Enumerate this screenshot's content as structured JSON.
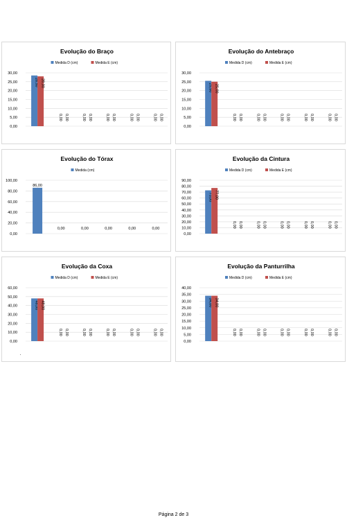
{
  "colors": {
    "series_d": "#4f81bd",
    "series_e": "#c0504d",
    "grid": "#d9d9d9",
    "axis_text": "#000000"
  },
  "footer": {
    "page_label": "Página 2 de 3"
  },
  "chart_data": [
    {
      "type": "bar",
      "title": "Evolução do Braço",
      "legend": "top",
      "ylim": [
        0,
        30
      ],
      "ystep": 5,
      "yticks": [
        "0,00",
        "5,00",
        "10,00",
        "15,00",
        "20,00",
        "25,00",
        "30,00"
      ],
      "label_orientation": "vertical",
      "series": [
        {
          "name": "Medida D (cm)",
          "values": [
            28.5,
            0,
            0,
            0,
            0,
            0
          ],
          "labels": [
            "28,50",
            "0,00",
            "0,00",
            "0,00",
            "0,00",
            "0,00"
          ]
        },
        {
          "name": "Medida E (cm)",
          "values": [
            28.0,
            0,
            0,
            0,
            0,
            0
          ],
          "labels": [
            "28,00",
            "0,00",
            "0,00",
            "0,00",
            "0,00",
            "0,00"
          ]
        }
      ]
    },
    {
      "type": "bar",
      "title": "Evolução do Antebraço",
      "legend": "top",
      "ylim": [
        0,
        30
      ],
      "ystep": 5,
      "yticks": [
        "0,00",
        "5,00",
        "10,00",
        "15,00",
        "20,00",
        "25,00",
        "30,00"
      ],
      "label_orientation": "vertical",
      "series": [
        {
          "name": "Medida D (cm)",
          "values": [
            25.5,
            0,
            0,
            0,
            0,
            0
          ],
          "labels": [
            "25,50",
            "0,00",
            "0,00",
            "0,00",
            "0,00",
            "0,00"
          ]
        },
        {
          "name": "Medida E (cm)",
          "values": [
            25.0,
            0,
            0,
            0,
            0,
            0
          ],
          "labels": [
            "25,00",
            "0,00",
            "0,00",
            "0,00",
            "0,00",
            "0,00"
          ]
        }
      ]
    },
    {
      "type": "bar",
      "title": "Evolução do Tórax",
      "legend": "top",
      "ylim": [
        0,
        100
      ],
      "ystep": 20,
      "yticks": [
        "0,00",
        "20,00",
        "40,00",
        "60,00",
        "80,00",
        "100,00"
      ],
      "label_orientation": "horizontal",
      "series": [
        {
          "name": "Medida (cm)",
          "values": [
            86,
            0,
            0,
            0,
            0,
            0
          ],
          "labels": [
            "86,00",
            "0,00",
            "0,00",
            "0,00",
            "0,00",
            "0,00"
          ]
        }
      ]
    },
    {
      "type": "bar",
      "title": "Evolução da Cintura",
      "legend": "top",
      "ylim": [
        0,
        90
      ],
      "ystep": 10,
      "yticks": [
        "0,00",
        "10,00",
        "20,00",
        "30,00",
        "40,00",
        "50,00",
        "60,00",
        "70,00",
        "80,00",
        "90,00"
      ],
      "label_orientation": "vertical",
      "series": [
        {
          "name": "Medida D (cm)",
          "values": [
            73,
            0,
            0,
            0,
            0,
            0
          ],
          "labels": [
            "73,00",
            "0,00",
            "0,00",
            "0,00",
            "0,00",
            "0,00"
          ]
        },
        {
          "name": "Medida E (cm)",
          "values": [
            77,
            0,
            0,
            0,
            0,
            0
          ],
          "labels": [
            "77,00",
            "0,00",
            "0,00",
            "0,00",
            "0,00",
            "0,00"
          ]
        }
      ]
    },
    {
      "type": "bar",
      "title": "Evolução da Coxa",
      "legend": "top",
      "ylim": [
        0,
        60
      ],
      "ystep": 10,
      "yticks": [
        "0,00",
        "10,00",
        "20,00",
        "30,00",
        "40,00",
        "50,00",
        "60,00"
      ],
      "label_orientation": "vertical",
      "series": [
        {
          "name": "Medida D (cm)",
          "values": [
            48,
            0,
            0,
            0,
            0,
            0
          ],
          "labels": [
            "48,00",
            "0,00",
            "0,00",
            "0,00",
            "0,00",
            "0,00"
          ]
        },
        {
          "name": "Medida E (cm)",
          "values": [
            48,
            0,
            0,
            0,
            0,
            0
          ],
          "labels": [
            "48,00",
            "0,00",
            "0,00",
            "0,00",
            "0,00",
            "0,00"
          ]
        }
      ]
    },
    {
      "type": "bar",
      "title": "Evolução da Panturrilha",
      "legend": "top",
      "ylim": [
        0,
        40
      ],
      "ystep": 5,
      "yticks": [
        "0,00",
        "5,00",
        "10,00",
        "15,00",
        "20,00",
        "25,00",
        "30,00",
        "35,00",
        "40,00"
      ],
      "label_orientation": "vertical",
      "series": [
        {
          "name": "Medida D (cm)",
          "values": [
            34,
            0,
            0,
            0,
            0,
            0
          ],
          "labels": [
            "34,00",
            "0,00",
            "0,00",
            "0,00",
            "0,00",
            "0,00"
          ]
        },
        {
          "name": "Medida E (cm)",
          "values": [
            34,
            0,
            0,
            0,
            0,
            0
          ],
          "labels": [
            "34,00",
            "0,00",
            "0,00",
            "0,00",
            "0,00",
            "0,00"
          ]
        }
      ]
    }
  ]
}
